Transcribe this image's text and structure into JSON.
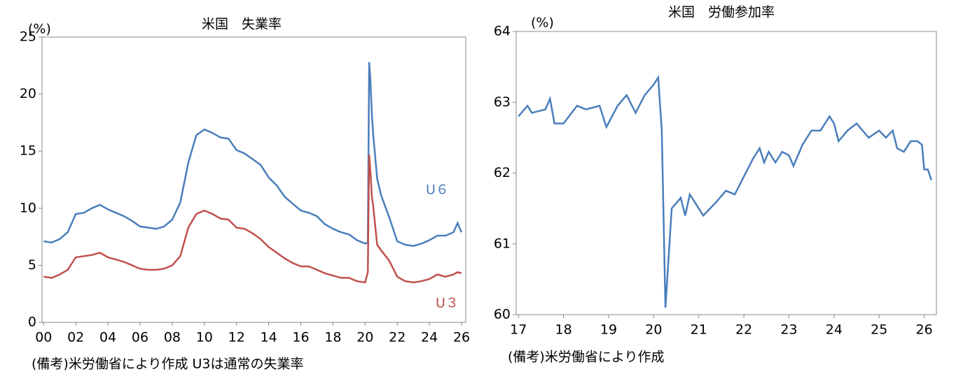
{
  "chart_data": [
    {
      "type": "line",
      "title": "米国　失業率",
      "y_label": "(%)",
      "note": "(備考)米労働省により作成 U3は通常の失業率",
      "x": [
        2000,
        2000.5,
        2001,
        2001.5,
        2002,
        2002.5,
        2003,
        2003.5,
        2004,
        2004.5,
        2005,
        2005.5,
        2006,
        2006.5,
        2007,
        2007.5,
        2008,
        2008.5,
        2009,
        2009.5,
        2010,
        2010.5,
        2011,
        2011.5,
        2012,
        2012.5,
        2013,
        2013.5,
        2014,
        2014.5,
        2015,
        2015.5,
        2016,
        2016.5,
        2017,
        2017.5,
        2018,
        2018.5,
        2019,
        2019.5,
        2020,
        2020.17,
        2020.25,
        2020.33,
        2020.42,
        2020.5,
        2020.75,
        2021,
        2021.5,
        2022,
        2022.5,
        2023,
        2023.5,
        2024,
        2024.5,
        2025,
        2025.5,
        2025.75,
        2026
      ],
      "series": [
        {
          "name": "U６",
          "color": "#4a7ebb",
          "values": [
            7.1,
            7.0,
            7.3,
            7.9,
            9.5,
            9.6,
            10.0,
            10.3,
            9.9,
            9.6,
            9.3,
            8.9,
            8.4,
            8.3,
            8.2,
            8.4,
            9.0,
            10.5,
            14.0,
            16.4,
            16.9,
            16.6,
            16.2,
            16.1,
            15.1,
            14.8,
            14.3,
            13.8,
            12.7,
            12.0,
            11.0,
            10.4,
            9.8,
            9.6,
            9.3,
            8.6,
            8.2,
            7.9,
            7.7,
            7.2,
            6.9,
            7.0,
            22.8,
            21.2,
            18.2,
            16.5,
            12.6,
            11.1,
            9.2,
            7.1,
            6.8,
            6.7,
            6.9,
            7.2,
            7.6,
            7.6,
            7.9,
            8.7,
            7.9
          ]
        },
        {
          "name": "U３",
          "color": "#c0504d",
          "values": [
            4.0,
            3.9,
            4.2,
            4.6,
            5.7,
            5.8,
            5.9,
            6.1,
            5.7,
            5.5,
            5.3,
            5.0,
            4.7,
            4.6,
            4.6,
            4.7,
            5.0,
            5.8,
            8.3,
            9.5,
            9.8,
            9.5,
            9.1,
            9.0,
            8.3,
            8.2,
            7.8,
            7.3,
            6.6,
            6.1,
            5.6,
            5.2,
            4.9,
            4.9,
            4.6,
            4.3,
            4.1,
            3.9,
            3.9,
            3.6,
            3.5,
            4.4,
            14.7,
            13.2,
            11.0,
            10.2,
            6.8,
            6.3,
            5.4,
            4.0,
            3.6,
            3.5,
            3.6,
            3.8,
            4.2,
            4.0,
            4.2,
            4.4,
            4.3
          ]
        }
      ],
      "xlim": [
        1999.9,
        2026.26
      ],
      "ylim": [
        0,
        25
      ],
      "yticks": [
        0,
        5,
        10,
        15,
        20,
        25
      ],
      "xticks": [
        {
          "value": 2000,
          "label": "00"
        },
        {
          "value": 2002,
          "label": "02"
        },
        {
          "value": 2004,
          "label": "04"
        },
        {
          "value": 2006,
          "label": "06"
        },
        {
          "value": 2008,
          "label": "08"
        },
        {
          "value": 2010,
          "label": "10"
        },
        {
          "value": 2012,
          "label": "12"
        },
        {
          "value": 2014,
          "label": "14"
        },
        {
          "value": 2016,
          "label": "16"
        },
        {
          "value": 2018,
          "label": "18"
        },
        {
          "value": 2020,
          "label": "20"
        },
        {
          "value": 2022,
          "label": "22"
        },
        {
          "value": 2024,
          "label": "24"
        },
        {
          "value": 2026,
          "label": "26"
        }
      ]
    },
    {
      "type": "line",
      "title": "米国　労働参加率",
      "y_label": "(%)",
      "note": "(備考)米労働省により作成",
      "x": [
        2017,
        2017.2,
        2017.3,
        2017.6,
        2017.7,
        2017.8,
        2018,
        2018.3,
        2018.5,
        2018.8,
        2018.95,
        2019.2,
        2019.4,
        2019.6,
        2019.8,
        2020,
        2020.1,
        2020.18,
        2020.26,
        2020.4,
        2020.6,
        2020.7,
        2020.8,
        2021,
        2021.1,
        2021.4,
        2021.6,
        2021.8,
        2022,
        2022.2,
        2022.35,
        2022.45,
        2022.55,
        2022.7,
        2022.85,
        2023,
        2023.1,
        2023.3,
        2023.5,
        2023.7,
        2023.9,
        2024,
        2024.1,
        2024.3,
        2024.5,
        2024.77,
        2025,
        2025.15,
        2025.3,
        2025.4,
        2025.55,
        2025.7,
        2025.85,
        2025.95,
        2026,
        2026.08,
        2026.16
      ],
      "series": [
        {
          "name": "労働参加率",
          "color": "#4a7ebb",
          "values": [
            62.8,
            62.95,
            62.85,
            62.9,
            63.05,
            62.7,
            62.7,
            62.95,
            62.9,
            62.95,
            62.65,
            62.95,
            63.1,
            62.85,
            63.1,
            63.25,
            63.35,
            62.6,
            60.1,
            61.5,
            61.65,
            61.4,
            61.7,
            61.5,
            61.4,
            61.6,
            61.75,
            61.7,
            61.95,
            62.2,
            62.35,
            62.15,
            62.3,
            62.15,
            62.3,
            62.25,
            62.1,
            62.4,
            62.6,
            62.6,
            62.8,
            62.7,
            62.45,
            62.6,
            62.7,
            62.5,
            62.6,
            62.5,
            62.6,
            62.35,
            62.3,
            62.45,
            62.45,
            62.4,
            62.05,
            62.05,
            61.9
          ]
        }
      ],
      "xlim": [
        2016.95,
        2026.27
      ],
      "ylim": [
        60,
        64
      ],
      "yticks": [
        60,
        61,
        62,
        63,
        64
      ],
      "xticks": [
        {
          "value": 2017,
          "label": "17"
        },
        {
          "value": 2018,
          "label": "18"
        },
        {
          "value": 2019,
          "label": "19"
        },
        {
          "value": 2020,
          "label": "20"
        },
        {
          "value": 2021,
          "label": "21"
        },
        {
          "value": 2022,
          "label": "22"
        },
        {
          "value": 2023,
          "label": "23"
        },
        {
          "value": 2024,
          "label": "24"
        },
        {
          "value": 2025,
          "label": "25"
        },
        {
          "value": 2026,
          "label": "26"
        }
      ]
    }
  ]
}
